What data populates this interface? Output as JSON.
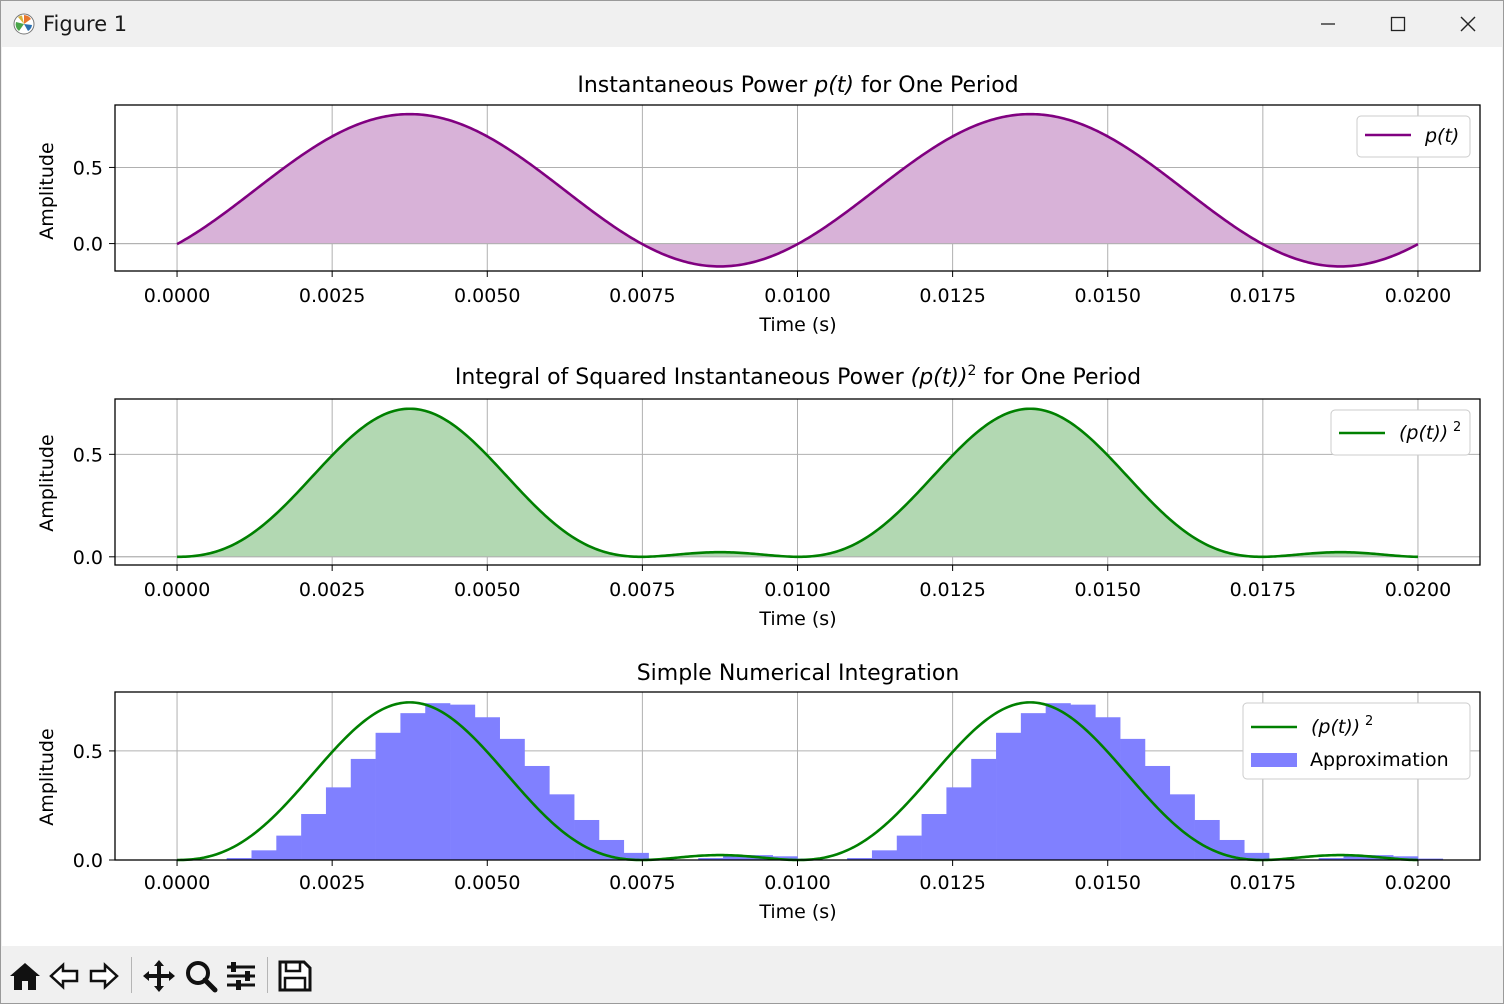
{
  "window": {
    "title": "Figure 1"
  },
  "toolbar": {
    "buttons": [
      "home-icon",
      "back-arrow-icon",
      "forward-arrow-icon",
      "pan-icon",
      "zoom-icon",
      "configure-subplots-icon",
      "save-icon"
    ]
  },
  "colors": {
    "purple": "#800080",
    "purple_fill": "#d8b2d8",
    "green": "#008000",
    "green_fill": "#b2d8b2",
    "bar_fill": "#8080ff",
    "grid": "#b0b0b0"
  },
  "chart_data": [
    {
      "type": "area",
      "title_pre": "Instantaneous Power ",
      "title_math": "p(t)",
      "title_post": " for One Period",
      "xlabel": "Time (s)",
      "ylabel": "Amplitude",
      "xlim": [
        -0.001,
        0.021
      ],
      "ylim": [
        -0.18,
        0.91
      ],
      "xticks": [
        "0.0000",
        "0.0025",
        "0.0050",
        "0.0075",
        "0.0100",
        "0.0125",
        "0.0150",
        "0.0175",
        "0.0200"
      ],
      "yticks": [
        "0.0",
        "0.5"
      ],
      "ytick_values": [
        0.0,
        0.5
      ],
      "grid": true,
      "legend_position": "upper right",
      "series": [
        {
          "name": "p(t)",
          "formula": "0.35 + 0.5*sin(2*pi*100*t - pi/4)",
          "x_range": [
            0,
            0.02
          ],
          "color": "#800080",
          "fill": "#d8b2d8"
        }
      ]
    },
    {
      "type": "area",
      "title_pre": "Integral of Squared Instantaneous Power ",
      "title_math": "(p(t))",
      "title_sup": "2",
      "title_post": " for One Period",
      "xlabel": "Time (s)",
      "ylabel": "Amplitude",
      "xlim": [
        -0.001,
        0.021
      ],
      "ylim": [
        -0.04,
        0.77
      ],
      "xticks": [
        "0.0000",
        "0.0025",
        "0.0050",
        "0.0075",
        "0.0100",
        "0.0125",
        "0.0150",
        "0.0175",
        "0.0200"
      ],
      "yticks": [
        "0.0",
        "0.5"
      ],
      "ytick_values": [
        0.0,
        0.5
      ],
      "grid": true,
      "legend_position": "upper right",
      "series": [
        {
          "name": "(p(t))",
          "name_sup": "2",
          "formula": "(0.35 + 0.5*sin(2*pi*100*t - pi/4))^2",
          "x_range": [
            0,
            0.02
          ],
          "color": "#008000",
          "fill": "#b2d8b2"
        }
      ]
    },
    {
      "type": "bar",
      "title": "Simple Numerical Integration",
      "xlabel": "Time (s)",
      "ylabel": "Amplitude",
      "xlim": [
        -0.001,
        0.021
      ],
      "ylim": [
        0.0,
        0.77
      ],
      "xticks": [
        "0.0000",
        "0.0025",
        "0.0050",
        "0.0075",
        "0.0100",
        "0.0125",
        "0.0150",
        "0.0175",
        "0.0200"
      ],
      "yticks": [
        "0.0",
        "0.5"
      ],
      "ytick_values": [
        0.0,
        0.5
      ],
      "grid": true,
      "legend_position": "upper right",
      "series": [
        {
          "name": "(p(t))",
          "name_sup": "2",
          "formula": "(0.35 + 0.5*sin(2*pi*100*t - pi/4))^2",
          "x_range": [
            0,
            0.02
          ],
          "color": "#008000"
        },
        {
          "name": "Approximation",
          "bar_width": 0.0004,
          "bar_count": 50,
          "bar_offset": 0.0004,
          "color": "#8080ff"
        }
      ]
    }
  ]
}
